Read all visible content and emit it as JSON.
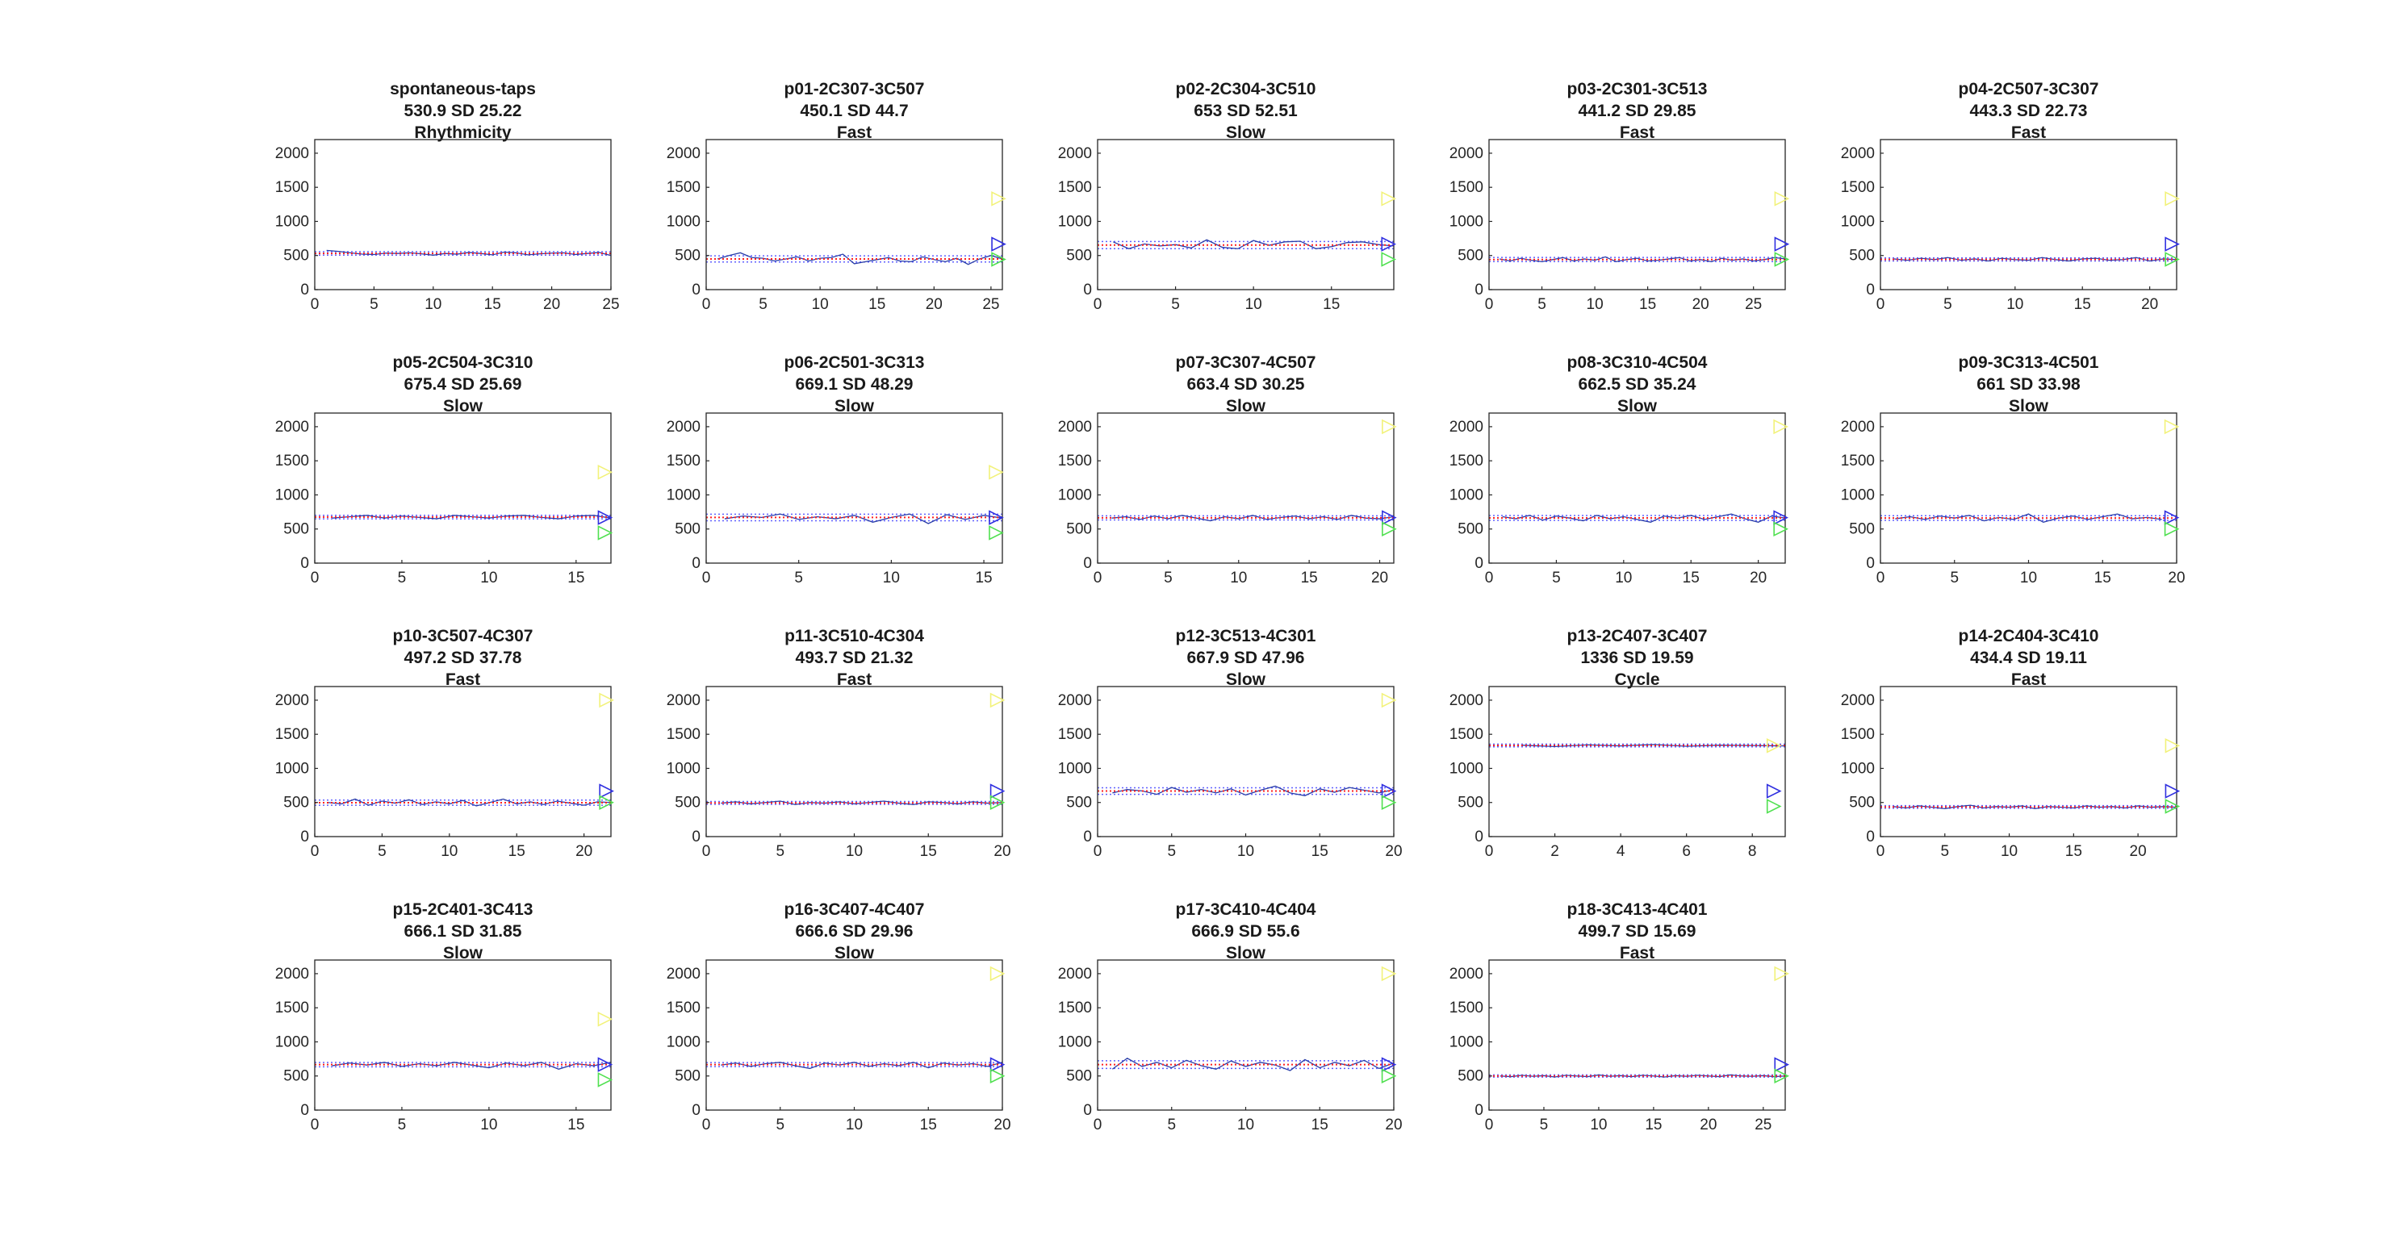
{
  "figure": {
    "colors": {
      "interval_line": "#2a3ea8",
      "mean_line": "#ff2020",
      "sd_band": "#6060ff",
      "marker_yellow": "#f2f27a",
      "marker_blue": "#3030e0",
      "marker_green": "#50e050",
      "axes": "#262626"
    }
  },
  "chart_data": [
    {
      "type": "line",
      "title": "spontaneous-taps",
      "subtitle": "530.9 SD 25.22",
      "label": "Rhythmicity",
      "xlim": [
        0,
        25
      ],
      "ylim": [
        0,
        2200
      ],
      "xticks": [
        0,
        5,
        10,
        15,
        20,
        25
      ],
      "yticks": [
        0,
        500,
        1000,
        1500,
        2000
      ],
      "mean": 530.9,
      "sd": 25.22,
      "markers": [],
      "values": [
        575,
        560,
        540,
        520,
        515,
        535,
        530,
        540,
        525,
        505,
        530,
        520,
        545,
        530,
        510,
        550,
        540,
        510,
        525,
        535,
        540,
        515,
        530,
        545,
        500
      ]
    },
    {
      "type": "line",
      "title": "p01-2C307-3C507",
      "subtitle": "450.1 SD 44.7",
      "label": "Fast",
      "xlim": [
        0,
        26
      ],
      "ylim": [
        0,
        2200
      ],
      "xticks": [
        0,
        5,
        10,
        15,
        20,
        25
      ],
      "yticks": [
        0,
        500,
        1000,
        1500,
        2000
      ],
      "mean": 450.1,
      "sd": 44.7,
      "markers": [
        {
          "color": "yellow",
          "value": 1333
        },
        {
          "color": "blue",
          "value": 667
        },
        {
          "color": "green",
          "value": 444
        }
      ],
      "values": [
        450,
        500,
        540,
        470,
        460,
        420,
        450,
        480,
        420,
        460,
        470,
        520,
        380,
        410,
        440,
        470,
        420,
        410,
        480,
        440,
        410,
        460,
        370,
        450,
        500,
        450
      ]
    },
    {
      "type": "line",
      "title": "p02-2C304-3C510",
      "subtitle": "653 SD 52.51",
      "label": "Slow",
      "xlim": [
        0,
        19
      ],
      "ylim": [
        0,
        2200
      ],
      "xticks": [
        0,
        5,
        10,
        15
      ],
      "yticks": [
        0,
        500,
        1000,
        1500,
        2000
      ],
      "mean": 653,
      "sd": 52.51,
      "markers": [
        {
          "color": "yellow",
          "value": 1333
        },
        {
          "color": "blue",
          "value": 667
        },
        {
          "color": "green",
          "value": 444
        }
      ],
      "values": [
        700,
        600,
        670,
        640,
        660,
        610,
        730,
        620,
        600,
        720,
        650,
        700,
        710,
        600,
        630,
        690,
        700,
        660,
        640
      ]
    },
    {
      "type": "line",
      "title": "p03-2C301-3C513",
      "subtitle": "441.2 SD 29.85",
      "label": "Fast",
      "xlim": [
        0,
        28
      ],
      "ylim": [
        0,
        2200
      ],
      "xticks": [
        0,
        5,
        10,
        15,
        20,
        25
      ],
      "yticks": [
        0,
        500,
        1000,
        1500,
        2000
      ],
      "mean": 441.2,
      "sd": 29.85,
      "markers": [
        {
          "color": "yellow",
          "value": 1333
        },
        {
          "color": "blue",
          "value": 667
        },
        {
          "color": "green",
          "value": 444
        }
      ],
      "values": [
        450,
        420,
        460,
        430,
        410,
        440,
        470,
        420,
        450,
        430,
        480,
        410,
        440,
        460,
        420,
        430,
        450,
        470,
        420,
        440,
        410,
        460,
        430,
        450,
        420,
        440,
        470,
        450
      ]
    },
    {
      "type": "line",
      "title": "p04-2C507-3C307",
      "subtitle": "443.3 SD 22.73",
      "label": "Fast",
      "xlim": [
        0,
        22
      ],
      "ylim": [
        0,
        2200
      ],
      "xticks": [
        0,
        5,
        10,
        15,
        20
      ],
      "yticks": [
        0,
        500,
        1000,
        1500,
        2000
      ],
      "mean": 443.3,
      "sd": 22.73,
      "markers": [
        {
          "color": "yellow",
          "value": 1333
        },
        {
          "color": "blue",
          "value": 667
        },
        {
          "color": "green",
          "value": 444
        }
      ],
      "values": [
        450,
        430,
        460,
        440,
        470,
        430,
        450,
        420,
        460,
        440,
        430,
        470,
        440,
        420,
        450,
        460,
        430,
        440,
        470,
        420,
        450,
        440
      ]
    },
    {
      "type": "line",
      "title": "p05-2C504-3C310",
      "subtitle": "675.4 SD 25.69",
      "label": "Slow",
      "xlim": [
        0,
        17
      ],
      "ylim": [
        0,
        2200
      ],
      "xticks": [
        0,
        5,
        10,
        15
      ],
      "yticks": [
        0,
        500,
        1000,
        1500,
        2000
      ],
      "mean": 675.4,
      "sd": 25.69,
      "markers": [
        {
          "color": "yellow",
          "value": 1333
        },
        {
          "color": "blue",
          "value": 667
        },
        {
          "color": "green",
          "value": 444
        }
      ],
      "values": [
        660,
        680,
        700,
        660,
        690,
        670,
        650,
        700,
        680,
        660,
        690,
        700,
        670,
        650,
        690,
        700,
        660
      ]
    },
    {
      "type": "line",
      "title": "p06-2C501-3C313",
      "subtitle": "669.1 SD 48.29",
      "label": "Slow",
      "xlim": [
        0,
        16
      ],
      "ylim": [
        0,
        2200
      ],
      "xticks": [
        0,
        5,
        10,
        15
      ],
      "yticks": [
        0,
        500,
        1000,
        1500,
        2000
      ],
      "mean": 669.1,
      "sd": 48.29,
      "markers": [
        {
          "color": "yellow",
          "value": 1333
        },
        {
          "color": "blue",
          "value": 667
        },
        {
          "color": "green",
          "value": 444
        }
      ],
      "values": [
        650,
        690,
        670,
        720,
        640,
        680,
        650,
        700,
        600,
        670,
        720,
        580,
        710,
        640,
        700,
        660
      ]
    },
    {
      "type": "line",
      "title": "p07-3C307-4C507",
      "subtitle": "663.4 SD 30.25",
      "label": "Slow",
      "xlim": [
        0,
        21
      ],
      "ylim": [
        0,
        2200
      ],
      "xticks": [
        0,
        5,
        10,
        15,
        20
      ],
      "yticks": [
        0,
        500,
        1000,
        1500,
        2000
      ],
      "mean": 663.4,
      "sd": 30.25,
      "markers": [
        {
          "color": "yellow",
          "value": 2000
        },
        {
          "color": "blue",
          "value": 667
        },
        {
          "color": "green",
          "value": 500
        }
      ],
      "values": [
        660,
        680,
        640,
        690,
        650,
        700,
        660,
        620,
        680,
        650,
        700,
        640,
        670,
        690,
        650,
        680,
        640,
        700,
        660,
        650,
        680
      ]
    },
    {
      "type": "line",
      "title": "p08-3C310-4C504",
      "subtitle": "662.5 SD 35.24",
      "label": "Slow",
      "xlim": [
        0,
        22
      ],
      "ylim": [
        0,
        2200
      ],
      "xticks": [
        0,
        5,
        10,
        15,
        20
      ],
      "yticks": [
        0,
        500,
        1000,
        1500,
        2000
      ],
      "mean": 662.5,
      "sd": 35.24,
      "markers": [
        {
          "color": "yellow",
          "value": 2000
        },
        {
          "color": "blue",
          "value": 667
        },
        {
          "color": "green",
          "value": 500
        }
      ],
      "values": [
        680,
        650,
        700,
        630,
        690,
        660,
        620,
        700,
        650,
        680,
        640,
        600,
        690,
        660,
        700,
        640,
        680,
        720,
        650,
        600,
        690,
        660
      ]
    },
    {
      "type": "line",
      "title": "p09-3C313-4C501",
      "subtitle": "661 SD 33.98",
      "label": "Slow",
      "xlim": [
        0,
        20
      ],
      "ylim": [
        0,
        2200
      ],
      "xticks": [
        0,
        5,
        10,
        15,
        20
      ],
      "yticks": [
        0,
        500,
        1000,
        1500,
        2000
      ],
      "mean": 661,
      "sd": 33.98,
      "markers": [
        {
          "color": "yellow",
          "value": 2000
        },
        {
          "color": "blue",
          "value": 667
        },
        {
          "color": "green",
          "value": 500
        }
      ],
      "values": [
        650,
        680,
        640,
        690,
        660,
        700,
        620,
        670,
        640,
        720,
        600,
        660,
        690,
        640,
        680,
        720,
        650,
        670,
        640
      ]
    },
    {
      "type": "line",
      "title": "p10-3C507-4C307",
      "subtitle": "497.2 SD 37.78",
      "label": "Fast",
      "xlim": [
        0,
        22
      ],
      "ylim": [
        0,
        2200
      ],
      "xticks": [
        0,
        5,
        10,
        15,
        20
      ],
      "yticks": [
        0,
        500,
        1000,
        1500,
        2000
      ],
      "mean": 497.2,
      "sd": 37.78,
      "markers": [
        {
          "color": "yellow",
          "value": 2000
        },
        {
          "color": "blue",
          "value": 667
        },
        {
          "color": "green",
          "value": 500
        }
      ],
      "values": [
        500,
        480,
        550,
        460,
        520,
        490,
        540,
        470,
        510,
        480,
        530,
        450,
        500,
        550,
        480,
        510,
        470,
        520,
        490,
        460,
        510,
        500
      ]
    },
    {
      "type": "line",
      "title": "p11-3C510-4C304",
      "subtitle": "493.7 SD 21.32",
      "label": "Fast",
      "xlim": [
        0,
        20
      ],
      "ylim": [
        0,
        2200
      ],
      "xticks": [
        0,
        5,
        10,
        15,
        20
      ],
      "yticks": [
        0,
        500,
        1000,
        1500,
        2000
      ],
      "mean": 493.7,
      "sd": 21.32,
      "markers": [
        {
          "color": "yellow",
          "value": 2000
        },
        {
          "color": "blue",
          "value": 667
        },
        {
          "color": "green",
          "value": 500
        }
      ],
      "values": [
        490,
        510,
        480,
        500,
        520,
        470,
        500,
        490,
        510,
        480,
        500,
        520,
        490,
        470,
        510,
        500,
        480,
        510,
        490,
        500
      ]
    },
    {
      "type": "line",
      "title": "p12-3C513-4C301",
      "subtitle": "667.9 SD 47.96",
      "label": "Slow",
      "xlim": [
        0,
        20
      ],
      "ylim": [
        0,
        2200
      ],
      "xticks": [
        0,
        5,
        10,
        15,
        20
      ],
      "yticks": [
        0,
        500,
        1000,
        1500,
        2000
      ],
      "mean": 667.9,
      "sd": 47.96,
      "markers": [
        {
          "color": "yellow",
          "value": 2000
        },
        {
          "color": "blue",
          "value": 667
        },
        {
          "color": "green",
          "value": 500
        }
      ],
      "values": [
        640,
        690,
        670,
        620,
        720,
        650,
        690,
        640,
        700,
        610,
        680,
        740,
        640,
        600,
        700,
        650,
        720,
        680,
        640,
        690
      ]
    },
    {
      "type": "line",
      "title": "p13-2C407-3C407",
      "subtitle": "1336 SD 19.59",
      "label": "Cycle",
      "xlim": [
        0,
        9
      ],
      "ylim": [
        0,
        2200
      ],
      "xticks": [
        0,
        2,
        4,
        6,
        8
      ],
      "yticks": [
        0,
        500,
        1000,
        1500,
        2000
      ],
      "mean": 1336,
      "sd": 19.59,
      "markers": [
        {
          "color": "yellow",
          "value": 1333
        },
        {
          "color": "blue",
          "value": 667
        },
        {
          "color": "green",
          "value": 444
        }
      ],
      "values": [
        1340,
        1320,
        1345,
        1330,
        1350,
        1325,
        1340,
        1335,
        1330
      ]
    },
    {
      "type": "line",
      "title": "p14-2C404-3C410",
      "subtitle": "434.4 SD 19.11",
      "label": "Fast",
      "xlim": [
        0,
        23
      ],
      "ylim": [
        0,
        2200
      ],
      "xticks": [
        0,
        5,
        10,
        15,
        20
      ],
      "yticks": [
        0,
        500,
        1000,
        1500,
        2000
      ],
      "mean": 434.4,
      "sd": 19.11,
      "markers": [
        {
          "color": "yellow",
          "value": 1333
        },
        {
          "color": "blue",
          "value": 667
        },
        {
          "color": "green",
          "value": 444
        }
      ],
      "values": [
        440,
        420,
        450,
        430,
        410,
        440,
        460,
        420,
        440,
        430,
        450,
        410,
        440,
        430,
        420,
        450,
        430,
        440,
        420,
        450,
        430,
        440,
        430
      ]
    },
    {
      "type": "line",
      "title": "p15-2C401-3C413",
      "subtitle": "666.1 SD 31.85",
      "label": "Slow",
      "xlim": [
        0,
        17
      ],
      "ylim": [
        0,
        2200
      ],
      "xticks": [
        0,
        5,
        10,
        15
      ],
      "yticks": [
        0,
        500,
        1000,
        1500,
        2000
      ],
      "mean": 666.1,
      "sd": 31.85,
      "markers": [
        {
          "color": "yellow",
          "value": 1333
        },
        {
          "color": "blue",
          "value": 667
        },
        {
          "color": "green",
          "value": 444
        }
      ],
      "values": [
        650,
        690,
        660,
        700,
        640,
        680,
        650,
        700,
        660,
        620,
        690,
        650,
        700,
        600,
        680,
        650,
        700
      ]
    },
    {
      "type": "line",
      "title": "p16-3C407-4C407",
      "subtitle": "666.6 SD 29.96",
      "label": "Slow",
      "xlim": [
        0,
        20
      ],
      "ylim": [
        0,
        2200
      ],
      "xticks": [
        0,
        5,
        10,
        15,
        20
      ],
      "yticks": [
        0,
        500,
        1000,
        1500,
        2000
      ],
      "mean": 666.6,
      "sd": 29.96,
      "markers": [
        {
          "color": "yellow",
          "value": 2000
        },
        {
          "color": "blue",
          "value": 667
        },
        {
          "color": "green",
          "value": 500
        }
      ],
      "values": [
        660,
        690,
        640,
        680,
        700,
        650,
        610,
        690,
        660,
        700,
        640,
        680,
        650,
        700,
        620,
        690,
        660,
        680,
        640,
        700
      ]
    },
    {
      "type": "line",
      "title": "p17-3C410-4C404",
      "subtitle": "666.9 SD 55.6",
      "label": "Slow",
      "xlim": [
        0,
        20
      ],
      "ylim": [
        0,
        2200
      ],
      "xticks": [
        0,
        5,
        10,
        15,
        20
      ],
      "yticks": [
        0,
        500,
        1000,
        1500,
        2000
      ],
      "mean": 666.9,
      "sd": 55.6,
      "markers": [
        {
          "color": "yellow",
          "value": 2000
        },
        {
          "color": "blue",
          "value": 667
        },
        {
          "color": "green",
          "value": 500
        }
      ],
      "values": [
        600,
        760,
        640,
        700,
        620,
        730,
        650,
        600,
        720,
        640,
        700,
        660,
        580,
        740,
        620,
        700,
        650,
        730,
        610,
        690
      ]
    },
    {
      "type": "line",
      "title": "p18-3C413-4C401",
      "subtitle": "499.7 SD 15.69",
      "label": "Fast",
      "xlim": [
        0,
        27
      ],
      "ylim": [
        0,
        2200
      ],
      "xticks": [
        0,
        5,
        10,
        15,
        20,
        25
      ],
      "yticks": [
        0,
        500,
        1000,
        1500,
        2000
      ],
      "mean": 499.7,
      "sd": 15.69,
      "markers": [
        {
          "color": "yellow",
          "value": 2000
        },
        {
          "color": "blue",
          "value": 667
        },
        {
          "color": "green",
          "value": 500
        }
      ],
      "values": [
        500,
        490,
        510,
        495,
        505,
        485,
        510,
        500,
        490,
        515,
        495,
        505,
        490,
        510,
        500,
        485,
        505,
        495,
        510,
        500,
        490,
        515,
        500,
        495,
        505,
        490,
        500
      ]
    }
  ]
}
